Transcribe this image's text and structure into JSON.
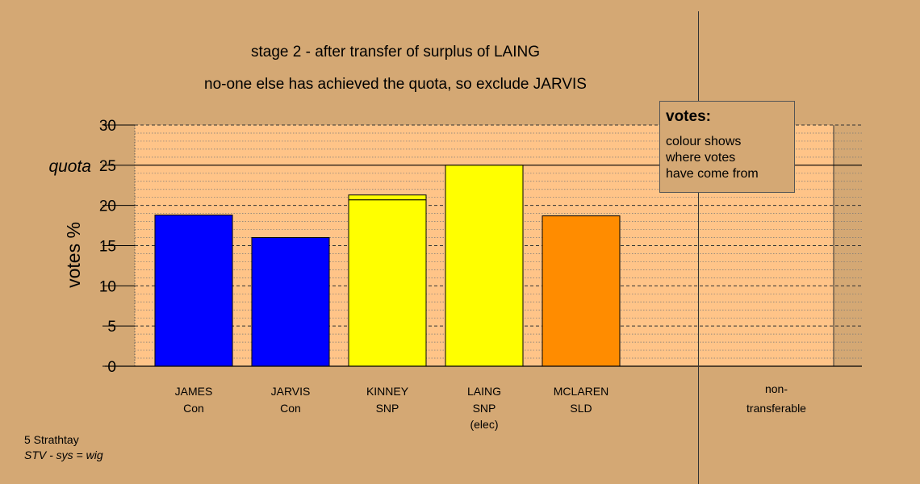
{
  "header": {
    "line1": "stage 2 - after transfer of surplus of LAING",
    "line2": "no-one else has achieved the quota, so exclude JARVIS"
  },
  "legend": {
    "title": "votes:",
    "lines": [
      "colour shows",
      "where votes",
      "have come from"
    ]
  },
  "footer": {
    "line1": "5 Strathtay",
    "line2": "STV - sys = wig"
  },
  "colors": {
    "background": "#d4a874",
    "plot_background": "#ffc488",
    "con": "#0000ff",
    "snp": "#ffff00",
    "sld": "#ff8c00"
  },
  "chart_data": {
    "type": "bar",
    "ylabel": "votes %",
    "ylim": [
      0,
      30
    ],
    "yticks": [
      0,
      5,
      10,
      15,
      20,
      25,
      30
    ],
    "quota": 25,
    "quota_label": "quota",
    "candidates": [
      {
        "name": "JAMES",
        "party": "Con",
        "note": "",
        "value": 18.8,
        "segments": [
          {
            "value": 18.8,
            "color": "#0000ff"
          }
        ]
      },
      {
        "name": "JARVIS",
        "party": "Con",
        "note": "",
        "value": 16.0,
        "segments": [
          {
            "value": 16.0,
            "color": "#0000ff"
          }
        ]
      },
      {
        "name": "KINNEY",
        "party": "SNP",
        "note": "",
        "value": 21.3,
        "segments": [
          {
            "value": 20.7,
            "color": "#ffff00"
          },
          {
            "value": 0.6,
            "color": "#ffff00"
          }
        ]
      },
      {
        "name": "LAING",
        "party": "SNP",
        "note": "(elec)",
        "value": 25.0,
        "segments": [
          {
            "value": 25.0,
            "color": "#ffff00"
          }
        ]
      },
      {
        "name": "MCLAREN",
        "party": "SLD",
        "note": "",
        "value": 18.7,
        "segments": [
          {
            "value": 18.7,
            "color": "#ff8c00"
          }
        ]
      }
    ],
    "non_transferable": {
      "label_line1": "non-",
      "label_line2": "transferable",
      "value": 0
    }
  }
}
